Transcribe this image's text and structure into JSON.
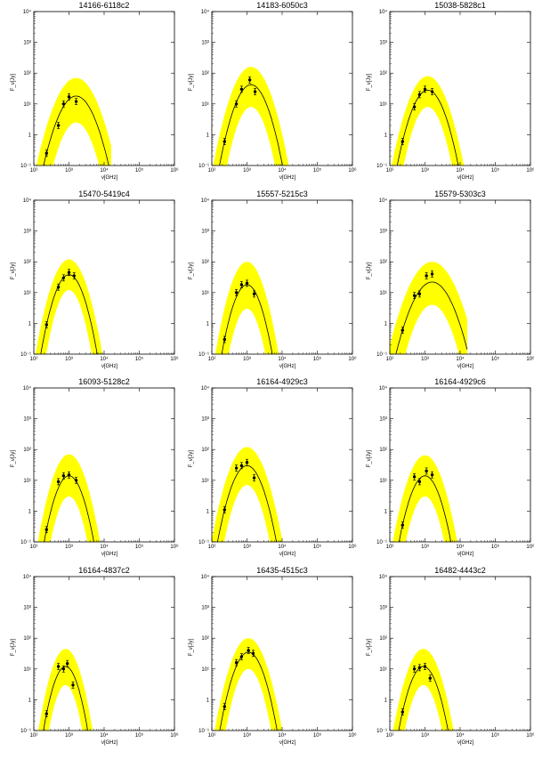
{
  "figure": {
    "xlabel": "ν[GHz]",
    "ylabel": "F_ν[Jy]",
    "x_ticks": [
      "10²",
      "10³",
      "10⁴",
      "10⁵",
      "10⁶"
    ],
    "y_ticks": [
      "10⁻¹",
      "1",
      "10¹",
      "10²",
      "10³",
      "10⁴"
    ],
    "colors": {
      "uncertainty_band": "#ffff00",
      "model_curve": "#000000",
      "points": "#000000",
      "axes": "#000000"
    }
  },
  "chart_data": [
    {
      "type": "scatter",
      "title": "14166-6118c2",
      "xlabel": "ν[GHz]",
      "ylabel": "F_ν[Jy]",
      "xscale": "log",
      "yscale": "log",
      "xlim": [
        100,
        1000000
      ],
      "ylim": [
        0.1,
        10000
      ],
      "points": [
        {
          "x": 230,
          "y": 0.25
        },
        {
          "x": 500,
          "y": 2.0
        },
        {
          "x": 700,
          "y": 10
        },
        {
          "x": 1000,
          "y": 17
        },
        {
          "x": 1600,
          "y": 12
        }
      ],
      "model_peak": {
        "x": 1600,
        "y": 18
      },
      "band_peak": {
        "upper": 70,
        "lower": 2.5
      }
    },
    {
      "type": "scatter",
      "title": "14183-6050c3",
      "xlabel": "ν[GHz]",
      "ylabel": "F_ν[Jy]",
      "xscale": "log",
      "yscale": "log",
      "xlim": [
        100,
        1000000
      ],
      "ylim": [
        0.1,
        10000
      ],
      "points": [
        {
          "x": 230,
          "y": 0.6
        },
        {
          "x": 500,
          "y": 10
        },
        {
          "x": 700,
          "y": 30
        },
        {
          "x": 1200,
          "y": 60
        },
        {
          "x": 1700,
          "y": 25
        }
      ],
      "model_peak": {
        "x": 1300,
        "y": 42
      },
      "band_peak": {
        "upper": 160,
        "lower": 8
      }
    },
    {
      "type": "scatter",
      "title": "15038-5828c1",
      "xlabel": "ν[GHz]",
      "ylabel": "F_ν[Jy]",
      "xscale": "log",
      "yscale": "log",
      "xlim": [
        100,
        1000000
      ],
      "ylim": [
        0.1,
        10000
      ],
      "points": [
        {
          "x": 230,
          "y": 0.6
        },
        {
          "x": 500,
          "y": 8
        },
        {
          "x": 700,
          "y": 20
        },
        {
          "x": 1000,
          "y": 30
        },
        {
          "x": 1600,
          "y": 25
        }
      ],
      "model_peak": {
        "x": 1200,
        "y": 28
      },
      "band_peak": {
        "upper": 80,
        "lower": 8
      }
    },
    {
      "type": "scatter",
      "title": "15470-5419c4",
      "xlabel": "ν[GHz]",
      "ylabel": "F_ν[Jy]",
      "xscale": "log",
      "yscale": "log",
      "xlim": [
        100,
        1000000
      ],
      "ylim": [
        0.1,
        10000
      ],
      "points": [
        {
          "x": 230,
          "y": 0.9
        },
        {
          "x": 500,
          "y": 15
        },
        {
          "x": 700,
          "y": 30
        },
        {
          "x": 1000,
          "y": 45
        },
        {
          "x": 1400,
          "y": 35
        }
      ],
      "model_peak": {
        "x": 1000,
        "y": 38
      },
      "band_peak": {
        "upper": 120,
        "lower": 12
      }
    },
    {
      "type": "scatter",
      "title": "15557-5215c3",
      "xlabel": "ν[GHz]",
      "ylabel": "F_ν[Jy]",
      "xscale": "log",
      "yscale": "log",
      "xlim": [
        100,
        1000000
      ],
      "ylim": [
        0.1,
        10000
      ],
      "points": [
        {
          "x": 230,
          "y": 0.3
        },
        {
          "x": 500,
          "y": 10
        },
        {
          "x": 700,
          "y": 18
        },
        {
          "x": 1000,
          "y": 20
        },
        {
          "x": 1600,
          "y": 9
        }
      ],
      "model_peak": {
        "x": 1000,
        "y": 18
      },
      "band_peak": {
        "upper": 100,
        "lower": 3
      }
    },
    {
      "type": "scatter",
      "title": "15579-5303c3",
      "xlabel": "ν[GHz]",
      "ylabel": "F_ν[Jy]",
      "xscale": "log",
      "yscale": "log",
      "xlim": [
        100,
        1000000
      ],
      "ylim": [
        0.1,
        10000
      ],
      "points": [
        {
          "x": 230,
          "y": 0.6
        },
        {
          "x": 500,
          "y": 8
        },
        {
          "x": 700,
          "y": 9
        },
        {
          "x": 1100,
          "y": 35
        },
        {
          "x": 1600,
          "y": 40
        }
      ],
      "model_peak": {
        "x": 1600,
        "y": 22
      },
      "band_peak": {
        "upper": 100,
        "lower": 4
      }
    },
    {
      "type": "scatter",
      "title": "16093-5128c2",
      "xlabel": "ν[GHz]",
      "ylabel": "F_ν[Jy]",
      "xscale": "log",
      "yscale": "log",
      "xlim": [
        100,
        1000000
      ],
      "ylim": [
        0.1,
        10000
      ],
      "points": [
        {
          "x": 230,
          "y": 0.25
        },
        {
          "x": 500,
          "y": 9
        },
        {
          "x": 700,
          "y": 14
        },
        {
          "x": 1000,
          "y": 15
        },
        {
          "x": 1600,
          "y": 10
        }
      ],
      "model_peak": {
        "x": 1000,
        "y": 14
      },
      "band_peak": {
        "upper": 70,
        "lower": 3
      }
    },
    {
      "type": "scatter",
      "title": "16164-4929c3",
      "xlabel": "ν[GHz]",
      "ylabel": "F_ν[Jy]",
      "xscale": "log",
      "yscale": "log",
      "xlim": [
        100,
        1000000
      ],
      "ylim": [
        0.1,
        10000
      ],
      "points": [
        {
          "x": 230,
          "y": 1.1
        },
        {
          "x": 500,
          "y": 25
        },
        {
          "x": 700,
          "y": 30
        },
        {
          "x": 1000,
          "y": 38
        },
        {
          "x": 1600,
          "y": 12
        }
      ],
      "model_peak": {
        "x": 1000,
        "y": 30
      },
      "band_peak": {
        "upper": 120,
        "lower": 7
      }
    },
    {
      "type": "scatter",
      "title": "16164-4929c6",
      "xlabel": "ν[GHz]",
      "ylabel": "F_ν[Jy]",
      "xscale": "log",
      "yscale": "log",
      "xlim": [
        100,
        1000000
      ],
      "ylim": [
        0.1,
        10000
      ],
      "points": [
        {
          "x": 230,
          "y": 0.35
        },
        {
          "x": 500,
          "y": 13
        },
        {
          "x": 700,
          "y": 9
        },
        {
          "x": 1100,
          "y": 20
        },
        {
          "x": 1600,
          "y": 15
        }
      ],
      "model_peak": {
        "x": 1000,
        "y": 14
      },
      "band_peak": {
        "upper": 65,
        "lower": 3
      }
    },
    {
      "type": "scatter",
      "title": "16164-4837c2",
      "xlabel": "ν[GHz]",
      "ylabel": "F_ν[Jy]",
      "xscale": "log",
      "yscale": "log",
      "xlim": [
        100,
        1000000
      ],
      "ylim": [
        0.1,
        10000
      ],
      "points": [
        {
          "x": 230,
          "y": 0.35
        },
        {
          "x": 500,
          "y": 12
        },
        {
          "x": 700,
          "y": 10
        },
        {
          "x": 900,
          "y": 15
        },
        {
          "x": 1300,
          "y": 3
        }
      ],
      "model_peak": {
        "x": 800,
        "y": 12
      },
      "band_peak": {
        "upper": 45,
        "lower": 3
      }
    },
    {
      "type": "scatter",
      "title": "16435-4515c3",
      "xlabel": "ν[GHz]",
      "ylabel": "F_ν[Jy]",
      "xscale": "log",
      "yscale": "log",
      "xlim": [
        100,
        1000000
      ],
      "ylim": [
        0.1,
        10000
      ],
      "points": [
        {
          "x": 230,
          "y": 0.6
        },
        {
          "x": 500,
          "y": 16
        },
        {
          "x": 700,
          "y": 25
        },
        {
          "x": 1100,
          "y": 40
        },
        {
          "x": 1500,
          "y": 32
        }
      ],
      "model_peak": {
        "x": 1100,
        "y": 35
      },
      "band_peak": {
        "upper": 100,
        "lower": 10
      }
    },
    {
      "type": "scatter",
      "title": "16482-4443c2",
      "xlabel": "ν[GHz]",
      "ylabel": "F_ν[Jy]",
      "xscale": "log",
      "yscale": "log",
      "xlim": [
        100,
        1000000
      ],
      "ylim": [
        0.1,
        10000
      ],
      "points": [
        {
          "x": 230,
          "y": 0.4
        },
        {
          "x": 500,
          "y": 10
        },
        {
          "x": 700,
          "y": 11
        },
        {
          "x": 1000,
          "y": 12
        },
        {
          "x": 1400,
          "y": 5
        }
      ],
      "model_peak": {
        "x": 900,
        "y": 12
      },
      "band_peak": {
        "upper": 45,
        "lower": 3
      }
    }
  ]
}
